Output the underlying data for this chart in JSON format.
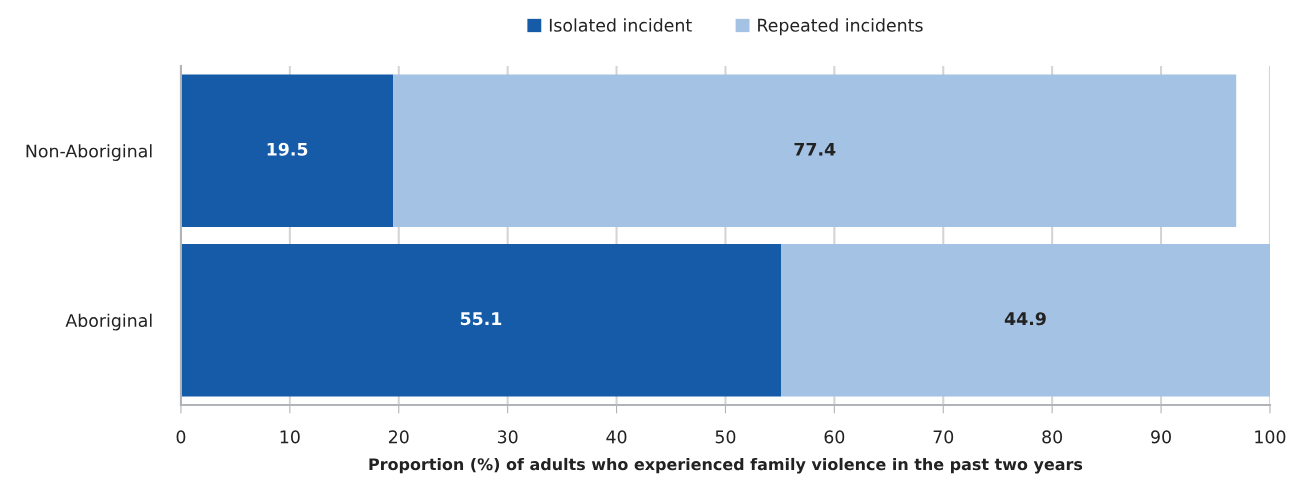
{
  "chart_data": {
    "type": "bar",
    "orientation": "horizontal",
    "stacked": true,
    "categories": [
      "Non-Aboriginal",
      "Aboriginal"
    ],
    "series": [
      {
        "name": "Isolated incident",
        "color": "#155ba8",
        "values": [
          19.5,
          55.1
        ]
      },
      {
        "name": "Repeated incidents",
        "color": "#a4c2e4",
        "values": [
          77.4,
          44.9
        ]
      }
    ],
    "xlabel": "Proportion (%) of adults who experienced family violence in the past two years",
    "xlim": [
      0,
      100
    ],
    "xticks": [
      0,
      10,
      20,
      30,
      40,
      50,
      60,
      70,
      80,
      90,
      100
    ],
    "grid": "x",
    "legend": "top",
    "data_labels": true
  }
}
